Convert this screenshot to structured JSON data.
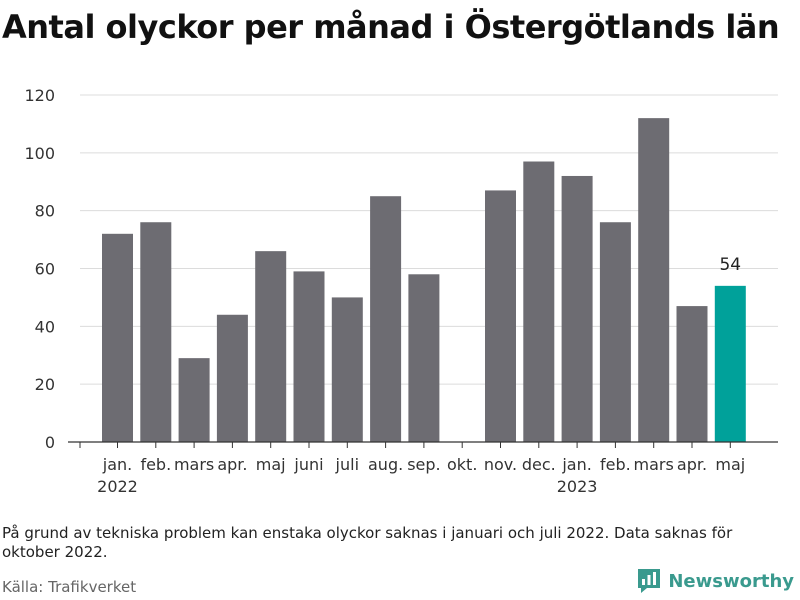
{
  "chart_data": {
    "type": "bar",
    "title": "Antal olyckor per månad i Östergötlands län",
    "categories": [
      "jan.",
      "feb.",
      "mars",
      "apr.",
      "maj",
      "juni",
      "juli",
      "aug.",
      "sep.",
      "okt.",
      "nov.",
      "dec.",
      "jan.",
      "feb.",
      "mars",
      "apr.",
      "maj"
    ],
    "years": [
      {
        "label": "2022",
        "category_index": 0
      },
      {
        "label": "2023",
        "category_index": 12
      }
    ],
    "values": [
      72,
      76,
      29,
      44,
      66,
      59,
      50,
      85,
      58,
      null,
      87,
      97,
      92,
      76,
      112,
      47,
      54
    ],
    "highlight_index": 16,
    "highlight_label": "54",
    "ylim": [
      0,
      120
    ],
    "yticks": [
      0,
      20,
      40,
      60,
      80,
      100,
      120
    ],
    "grid": true,
    "colors": {
      "bar": "#6d6c72",
      "highlight": "#00a19a",
      "grid": "#dcdcdc",
      "axis": "#333333"
    }
  },
  "footnote": "På grund av tekniska problem kan enstaka olyckor saknas i januari och juli 2022. Data saknas för oktober 2022.",
  "source": "Källa: Trafikverket",
  "brand": {
    "name": "Newsworthy",
    "icon": "newsworthy-logo-icon",
    "color": "#3a9a8e"
  }
}
